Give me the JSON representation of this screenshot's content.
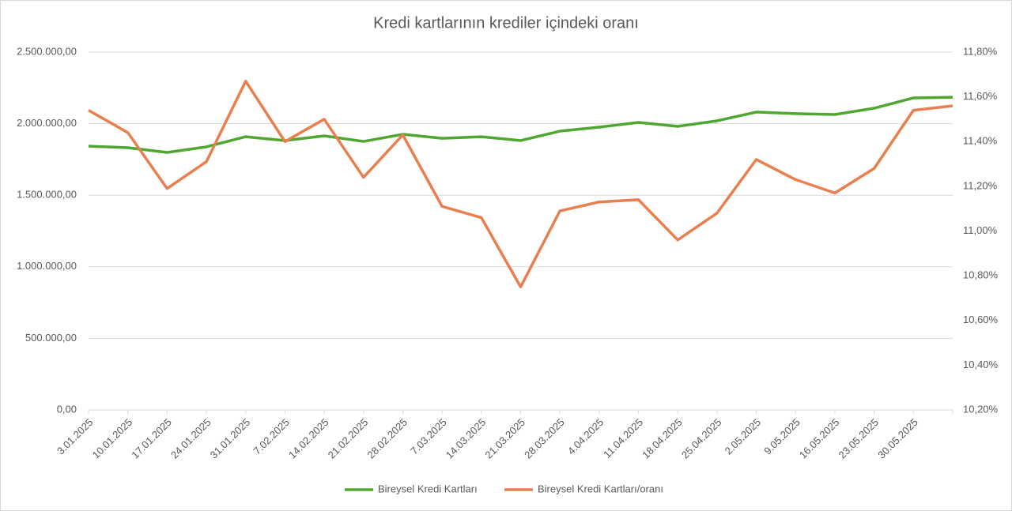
{
  "chart_data": {
    "type": "line",
    "title": "Kredi kartlarının krediler içindeki oranı",
    "categories": [
      "3.01.2025",
      "10.01.2025",
      "17.01.2025",
      "24.01.2025",
      "31.01.2025",
      "7.02.2025",
      "14.02.2025",
      "21.02.2025",
      "28.02.2025",
      "7.03.2025",
      "14.03.2025",
      "21.03.2025",
      "28.03.2025",
      "4.04.2025",
      "11.04.2025",
      "18.04.2025",
      "25.04.2025",
      "2.05.2025",
      "9.05.2025",
      "16.05.2025",
      "23.05.2025",
      "30.05.2025",
      null
    ],
    "series": [
      {
        "name": "Bireysel Kredi Kartları",
        "color": "#4ea72e",
        "values": [
          1843000,
          1832000,
          1799000,
          1838000,
          1909000,
          1882000,
          1915000,
          1876000,
          1926000,
          1898000,
          1909000,
          1882000,
          1948000,
          1976000,
          2009000,
          1981000,
          2020000,
          2081000,
          2070000,
          2064000,
          2108000,
          2180000,
          2185000
        ]
      },
      {
        "name": "Bireysel Kredi Kartları/oranı",
        "color": "#e97f4e",
        "axis": "y2",
        "values": [
          11.54,
          11.44,
          11.19,
          11.31,
          11.67,
          11.4,
          11.5,
          11.24,
          11.43,
          11.11,
          11.06,
          10.75,
          11.09,
          11.13,
          11.14,
          10.96,
          11.08,
          11.32,
          11.23,
          11.17,
          11.28,
          11.54,
          11.56
        ]
      }
    ],
    "ylim": [
      0,
      2500000
    ],
    "yticks": [
      {
        "value": 0,
        "label": "0,00"
      },
      {
        "value": 500000,
        "label": "500.000,00"
      },
      {
        "value": 1000000,
        "label": "1.000.000,00"
      },
      {
        "value": 1500000,
        "label": "1.500.000,00"
      },
      {
        "value": 2000000,
        "label": "2.000.000,00"
      },
      {
        "value": 2500000,
        "label": "2.500.000,00"
      }
    ],
    "y2lim": [
      10.2,
      11.8
    ],
    "y2ticks": [
      {
        "value": 10.2,
        "label": "10,20%"
      },
      {
        "value": 10.4,
        "label": "10,40%"
      },
      {
        "value": 10.6,
        "label": "10,60%"
      },
      {
        "value": 10.8,
        "label": "10,80%"
      },
      {
        "value": 11.0,
        "label": "11,00%"
      },
      {
        "value": 11.2,
        "label": "11,20%"
      },
      {
        "value": 11.4,
        "label": "11,40%"
      },
      {
        "value": 11.6,
        "label": "11,60%"
      },
      {
        "value": 11.8,
        "label": "11,80%"
      }
    ],
    "grid": true,
    "legend": "bottom"
  }
}
